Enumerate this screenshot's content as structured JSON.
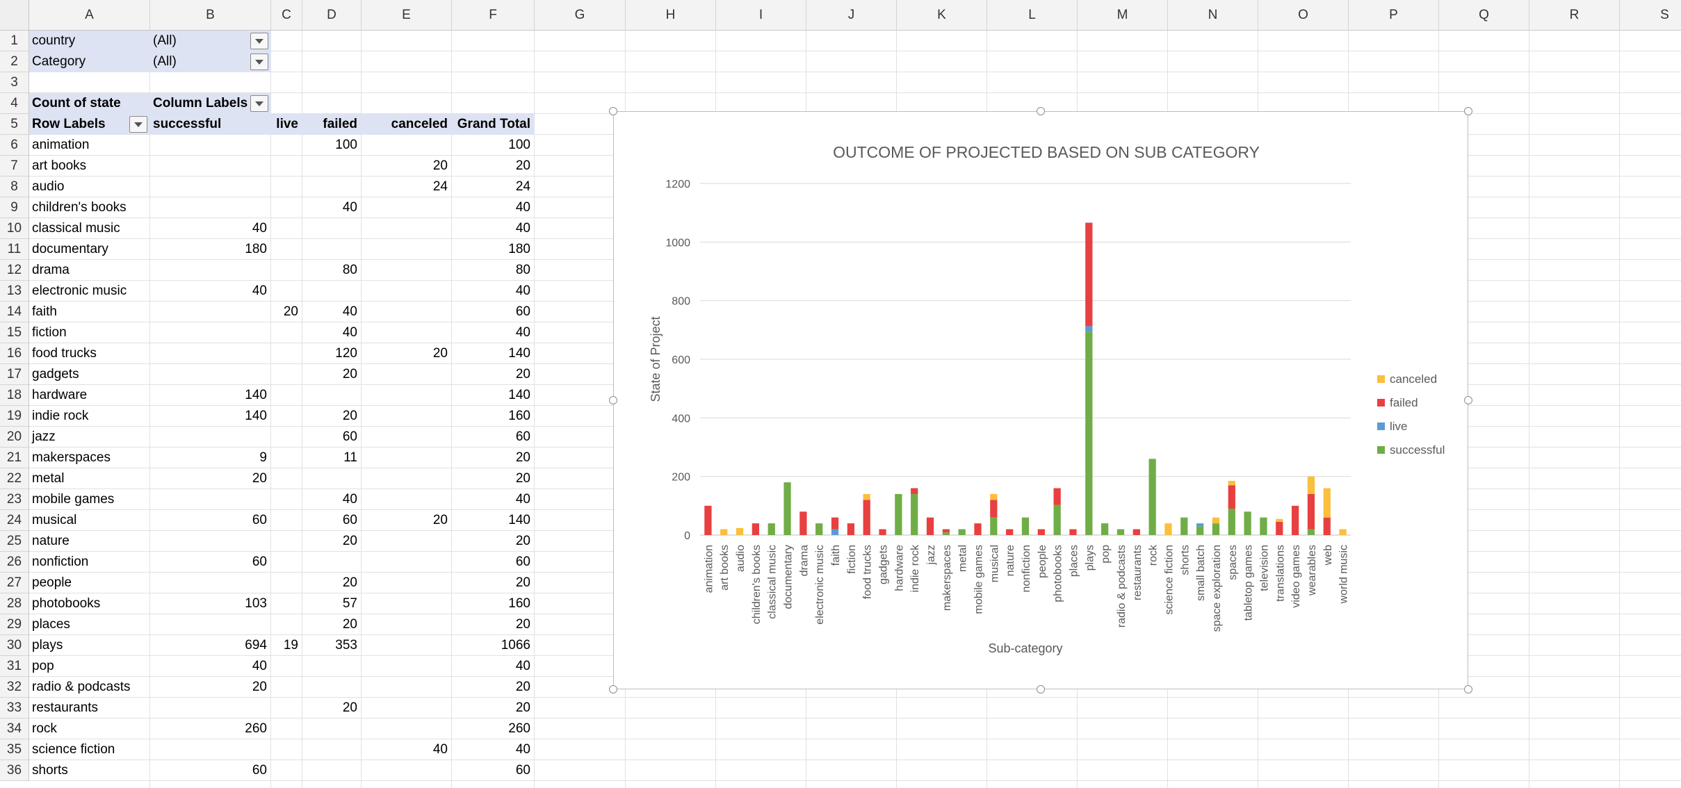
{
  "columns": [
    "A",
    "B",
    "C",
    "D",
    "E",
    "F",
    "G",
    "H",
    "I",
    "J",
    "K",
    "L",
    "M",
    "N",
    "O",
    "P",
    "Q",
    "R",
    "S"
  ],
  "rows": [
    "1",
    "2",
    "3",
    "4",
    "5",
    "6",
    "7",
    "8",
    "9",
    "10",
    "11",
    "12",
    "13",
    "14",
    "15",
    "16",
    "17",
    "18",
    "19",
    "20",
    "21",
    "22",
    "23",
    "24",
    "25",
    "26",
    "27",
    "28",
    "29",
    "30",
    "31",
    "32",
    "33",
    "34",
    "35",
    "36"
  ],
  "filters": [
    {
      "label": "country",
      "value": "(All)"
    },
    {
      "label": "Category",
      "value": "(All)"
    }
  ],
  "pivot": {
    "count_label": "Count of state",
    "column_labels": "Column Labels",
    "row_labels": "Row Labels",
    "headers": [
      "successful",
      "live",
      "failed",
      "canceled",
      "Grand Total"
    ],
    "rows": [
      {
        "label": "animation",
        "successful": "",
        "live": "",
        "failed": "100",
        "canceled": "",
        "total": "100"
      },
      {
        "label": "art books",
        "successful": "",
        "live": "",
        "failed": "",
        "canceled": "20",
        "total": "20"
      },
      {
        "label": "audio",
        "successful": "",
        "live": "",
        "failed": "",
        "canceled": "24",
        "total": "24"
      },
      {
        "label": "children's books",
        "successful": "",
        "live": "",
        "failed": "40",
        "canceled": "",
        "total": "40"
      },
      {
        "label": "classical music",
        "successful": "40",
        "live": "",
        "failed": "",
        "canceled": "",
        "total": "40"
      },
      {
        "label": "documentary",
        "successful": "180",
        "live": "",
        "failed": "",
        "canceled": "",
        "total": "180"
      },
      {
        "label": "drama",
        "successful": "",
        "live": "",
        "failed": "80",
        "canceled": "",
        "total": "80"
      },
      {
        "label": "electronic music",
        "successful": "40",
        "live": "",
        "failed": "",
        "canceled": "",
        "total": "40"
      },
      {
        "label": "faith",
        "successful": "",
        "live": "20",
        "failed": "40",
        "canceled": "",
        "total": "60"
      },
      {
        "label": "fiction",
        "successful": "",
        "live": "",
        "failed": "40",
        "canceled": "",
        "total": "40"
      },
      {
        "label": "food trucks",
        "successful": "",
        "live": "",
        "failed": "120",
        "canceled": "20",
        "total": "140"
      },
      {
        "label": "gadgets",
        "successful": "",
        "live": "",
        "failed": "20",
        "canceled": "",
        "total": "20"
      },
      {
        "label": "hardware",
        "successful": "140",
        "live": "",
        "failed": "",
        "canceled": "",
        "total": "140"
      },
      {
        "label": "indie rock",
        "successful": "140",
        "live": "",
        "failed": "20",
        "canceled": "",
        "total": "160"
      },
      {
        "label": "jazz",
        "successful": "",
        "live": "",
        "failed": "60",
        "canceled": "",
        "total": "60"
      },
      {
        "label": "makerspaces",
        "successful": "9",
        "live": "",
        "failed": "11",
        "canceled": "",
        "total": "20"
      },
      {
        "label": "metal",
        "successful": "20",
        "live": "",
        "failed": "",
        "canceled": "",
        "total": "20"
      },
      {
        "label": "mobile games",
        "successful": "",
        "live": "",
        "failed": "40",
        "canceled": "",
        "total": "40"
      },
      {
        "label": "musical",
        "successful": "60",
        "live": "",
        "failed": "60",
        "canceled": "20",
        "total": "140"
      },
      {
        "label": "nature",
        "successful": "",
        "live": "",
        "failed": "20",
        "canceled": "",
        "total": "20"
      },
      {
        "label": "nonfiction",
        "successful": "60",
        "live": "",
        "failed": "",
        "canceled": "",
        "total": "60"
      },
      {
        "label": "people",
        "successful": "",
        "live": "",
        "failed": "20",
        "canceled": "",
        "total": "20"
      },
      {
        "label": "photobooks",
        "successful": "103",
        "live": "",
        "failed": "57",
        "canceled": "",
        "total": "160"
      },
      {
        "label": "places",
        "successful": "",
        "live": "",
        "failed": "20",
        "canceled": "",
        "total": "20"
      },
      {
        "label": "plays",
        "successful": "694",
        "live": "19",
        "failed": "353",
        "canceled": "",
        "total": "1066"
      },
      {
        "label": "pop",
        "successful": "40",
        "live": "",
        "failed": "",
        "canceled": "",
        "total": "40"
      },
      {
        "label": "radio & podcasts",
        "successful": "20",
        "live": "",
        "failed": "",
        "canceled": "",
        "total": "20"
      },
      {
        "label": "restaurants",
        "successful": "",
        "live": "",
        "failed": "20",
        "canceled": "",
        "total": "20"
      },
      {
        "label": "rock",
        "successful": "260",
        "live": "",
        "failed": "",
        "canceled": "",
        "total": "260"
      },
      {
        "label": "science fiction",
        "successful": "",
        "live": "",
        "failed": "",
        "canceled": "40",
        "total": "40"
      },
      {
        "label": "shorts",
        "successful": "60",
        "live": "",
        "failed": "",
        "canceled": "",
        "total": "60"
      }
    ]
  },
  "chart_data": {
    "type": "bar",
    "stacked": true,
    "title": "OUTCOME OF PROJECTED BASED ON SUB CATEGORY",
    "xlabel": "Sub-category",
    "ylabel": "State of Project",
    "ylim": [
      0,
      1200
    ],
    "yticks": [
      0,
      200,
      400,
      600,
      800,
      1000,
      1200
    ],
    "grid": true,
    "legend_position": "right",
    "categories": [
      "animation",
      "art books",
      "audio",
      "children's books",
      "classical music",
      "documentary",
      "drama",
      "electronic music",
      "faith",
      "fiction",
      "food trucks",
      "gadgets",
      "hardware",
      "indie rock",
      "jazz",
      "makerspaces",
      "metal",
      "mobile games",
      "musical",
      "nature",
      "nonfiction",
      "people",
      "photobooks",
      "places",
      "plays",
      "pop",
      "radio & podcasts",
      "restaurants",
      "rock",
      "science fiction",
      "shorts",
      "small batch",
      "space exploration",
      "spaces",
      "tabletop games",
      "television",
      "translations",
      "video games",
      "wearables",
      "web",
      "world music"
    ],
    "series": [
      {
        "name": "successful",
        "color": "#70ad47",
        "values": [
          0,
          0,
          0,
          0,
          40,
          180,
          0,
          40,
          0,
          0,
          0,
          0,
          140,
          140,
          0,
          9,
          20,
          0,
          60,
          0,
          60,
          0,
          103,
          0,
          694,
          40,
          20,
          0,
          260,
          0,
          60,
          30,
          40,
          90,
          80,
          60,
          0,
          0,
          20,
          0,
          0
        ]
      },
      {
        "name": "live",
        "color": "#5b9bd5",
        "values": [
          0,
          0,
          0,
          0,
          0,
          0,
          0,
          0,
          20,
          0,
          0,
          0,
          0,
          0,
          0,
          0,
          0,
          0,
          0,
          0,
          0,
          0,
          0,
          0,
          19,
          0,
          0,
          0,
          0,
          0,
          0,
          10,
          0,
          0,
          0,
          0,
          0,
          0,
          0,
          0,
          0
        ]
      },
      {
        "name": "failed",
        "color": "#e84040",
        "values": [
          100,
          0,
          0,
          40,
          0,
          0,
          80,
          0,
          40,
          40,
          120,
          20,
          0,
          20,
          60,
          11,
          0,
          40,
          60,
          20,
          0,
          20,
          57,
          20,
          353,
          0,
          0,
          20,
          0,
          0,
          0,
          0,
          0,
          80,
          0,
          0,
          45,
          100,
          120,
          60,
          0
        ]
      },
      {
        "name": "canceled",
        "color": "#fbbf3c",
        "values": [
          0,
          20,
          24,
          0,
          0,
          0,
          0,
          0,
          0,
          0,
          20,
          0,
          0,
          0,
          0,
          0,
          0,
          0,
          20,
          0,
          0,
          0,
          0,
          0,
          0,
          0,
          0,
          0,
          0,
          40,
          0,
          0,
          20,
          15,
          0,
          0,
          10,
          0,
          60,
          100,
          20
        ]
      }
    ],
    "legend_order": [
      "canceled",
      "failed",
      "live",
      "successful"
    ]
  }
}
